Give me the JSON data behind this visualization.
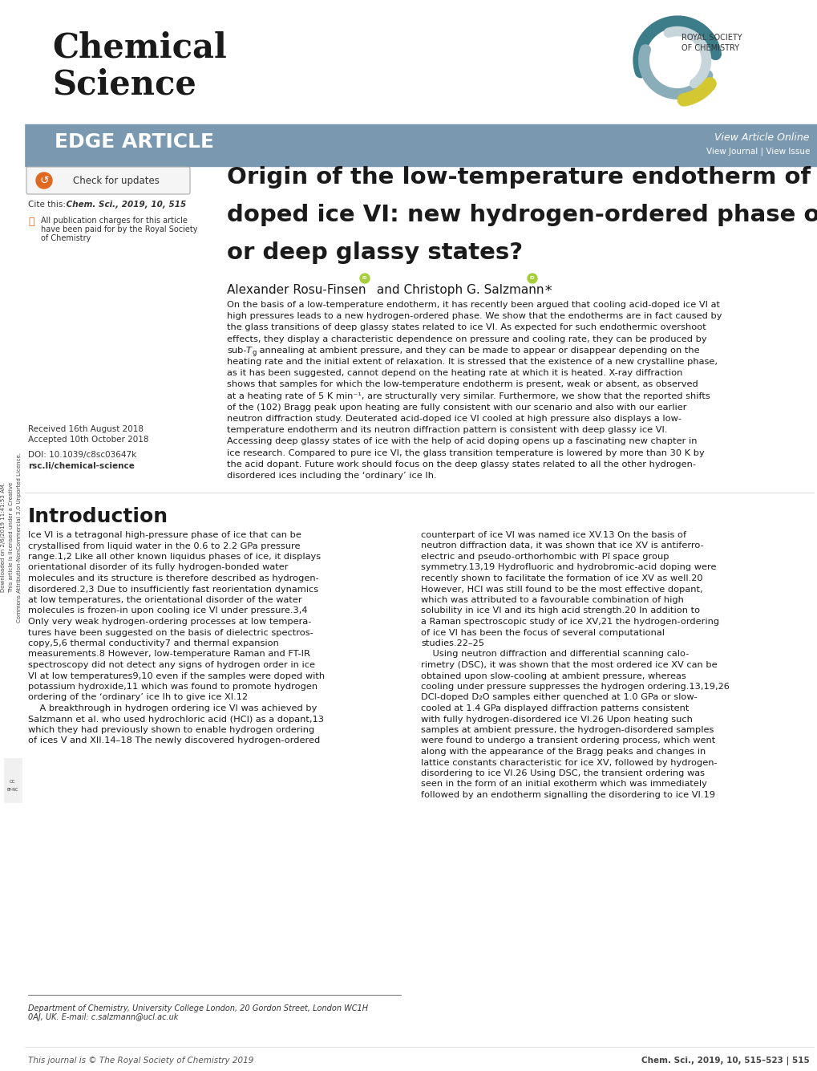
{
  "background_color": "#ffffff",
  "header_bar_color": "#7a98b0",
  "journal_title_line1": "Chemical",
  "journal_title_line2": "Science",
  "edge_article_label": "EDGE ARTICLE",
  "view_article_online": "View Article Online",
  "view_journal_issue": "View Journal | View Issue",
  "check_update_text": "Check for updates",
  "cite_this_label": "Cite this:",
  "cite_this_value": " Chem. Sci., 2019, 10, 515",
  "open_access_lines": [
    "All publication charges for this article",
    "have been paid for by the Royal Society",
    "of Chemistry"
  ],
  "received": "Received 16th August 2018",
  "accepted": "Accepted 10th October 2018",
  "doi": "DOI: 10.1039/c8sc03647k",
  "rsc_link": "rsc.li/chemical-science",
  "title_lines": [
    "Origin of the low-temperature endotherm of acid-",
    "doped ice VI: new hydrogen-ordered phase of ice",
    "or deep glassy states?"
  ],
  "author1": "Alexander Rosu-Finsen",
  "author_mid": " and Christoph G. Salzmann",
  "abstract_lines": [
    "On the basis of a low-temperature endotherm, it has recently been argued that cooling acid-doped ice VI at",
    "high pressures leads to a new hydrogen-ordered phase. We show that the endotherms are in fact caused by",
    "the glass transitions of deep glassy states related to ice VI. As expected for such endothermic overshoot",
    "effects, they display a characteristic dependence on pressure and cooling rate, they can be produced by",
    "sub-Tg annealing at ambient pressure, and they can be made to appear or disappear depending on the",
    "heating rate and the initial extent of relaxation. It is stressed that the existence of a new crystalline phase,",
    "as it has been suggested, cannot depend on the heating rate at which it is heated. X-ray diffraction",
    "shows that samples for which the low-temperature endotherm is present, weak or absent, as observed",
    "at a heating rate of 5 K min⁻¹, are structurally very similar. Furthermore, we show that the reported shifts",
    "of the (102) Bragg peak upon heating are fully consistent with our scenario and also with our earlier",
    "neutron diffraction study. Deuterated acid-doped ice VI cooled at high pressure also displays a low-",
    "temperature endotherm and its neutron diffraction pattern is consistent with deep glassy ice VI.",
    "Accessing deep glassy states of ice with the help of acid doping opens up a fascinating new chapter in",
    "ice research. Compared to pure ice VI, the glass transition temperature is lowered by more than 30 K by",
    "the acid dopant. Future work should focus on the deep glassy states related to all the other hydrogen-",
    "disordered ices including the ‘ordinary’ ice Ih."
  ],
  "intro_heading": "Introduction",
  "left_intro_lines": [
    "Ice VI is a tetragonal high-pressure phase of ice that can be",
    "crystallised from liquid water in the 0.6 to 2.2 GPa pressure",
    "range.1,2 Like all other known liquidus phases of ice, it displays",
    "orientational disorder of its fully hydrogen-bonded water",
    "molecules and its structure is therefore described as hydrogen-",
    "disordered.2,3 Due to insufficiently fast reorientation dynamics",
    "at low temperatures, the orientational disorder of the water",
    "molecules is frozen-in upon cooling ice VI under pressure.3,4",
    "Only very weak hydrogen-ordering processes at low tempera-",
    "tures have been suggested on the basis of dielectric spectros-",
    "copy,5,6 thermal conductivity7 and thermal expansion",
    "measurements.8 However, low-temperature Raman and FT-IR",
    "spectroscopy did not detect any signs of hydrogen order in ice",
    "VI at low temperatures9,10 even if the samples were doped with",
    "potassium hydroxide,11 which was found to promote hydrogen",
    "ordering of the ‘ordinary’ ice Ih to give ice XI.12",
    "    A breakthrough in hydrogen ordering ice VI was achieved by",
    "Salzmann et al. who used hydrochloric acid (HCl) as a dopant,13",
    "which they had previously shown to enable hydrogen ordering",
    "of ices V and XII.14–18 The newly discovered hydrogen-ordered"
  ],
  "right_intro_lines": [
    "counterpart of ice VI was named ice XV.13 On the basis of",
    "neutron diffraction data, it was shown that ice XV is antiferro-",
    "electric and pseudo-orthorhombic with Pī space group",
    "symmetry.13,19 Hydrofluoric and hydrobromic-acid doping were",
    "recently shown to facilitate the formation of ice XV as well.20",
    "However, HCl was still found to be the most effective dopant,",
    "which was attributed to a favourable combination of high",
    "solubility in ice VI and its high acid strength.20 In addition to",
    "a Raman spectroscopic study of ice XV,21 the hydrogen-ordering",
    "of ice VI has been the focus of several computational",
    "studies.22–25",
    "    Using neutron diffraction and differential scanning calo-",
    "rimetry (DSC), it was shown that the most ordered ice XV can be",
    "obtained upon slow-cooling at ambient pressure, whereas",
    "cooling under pressure suppresses the hydrogen ordering.13,19,26",
    "DCl-doped D₂O samples either quenched at 1.0 GPa or slow-",
    "cooled at 1.4 GPa displayed diffraction patterns consistent",
    "with fully hydrogen-disordered ice VI.26 Upon heating such",
    "samples at ambient pressure, the hydrogen-disordered samples",
    "were found to undergo a transient ordering process, which went",
    "along with the appearance of the Bragg peaks and changes in",
    "lattice constants characteristic for ice XV, followed by hydrogen-",
    "disordering to ice VI.26 Using DSC, the transient ordering was",
    "seen in the form of an initial exotherm which was immediately",
    "followed by an endotherm signalling the disordering to ice VI.19"
  ],
  "footnote_line1": "Department of Chemistry, University College London, 20 Gordon Street, London WC1H",
  "footnote_line2": "0AJ, UK. E-mail: c.salzmann@ucl.ac.uk",
  "footer_journal": "This journal is © The Royal Society of Chemistry 2019",
  "footer_citation": "Chem. Sci., 2019, 10, 515–523 | 515",
  "sidebar_lines": [
    "Downloaded on 2/6/2019 11:41:53 AM.",
    "This article is licensed under a Creative",
    "Commons Attribution-NonCommercial 3.0 Unported Licence."
  ]
}
